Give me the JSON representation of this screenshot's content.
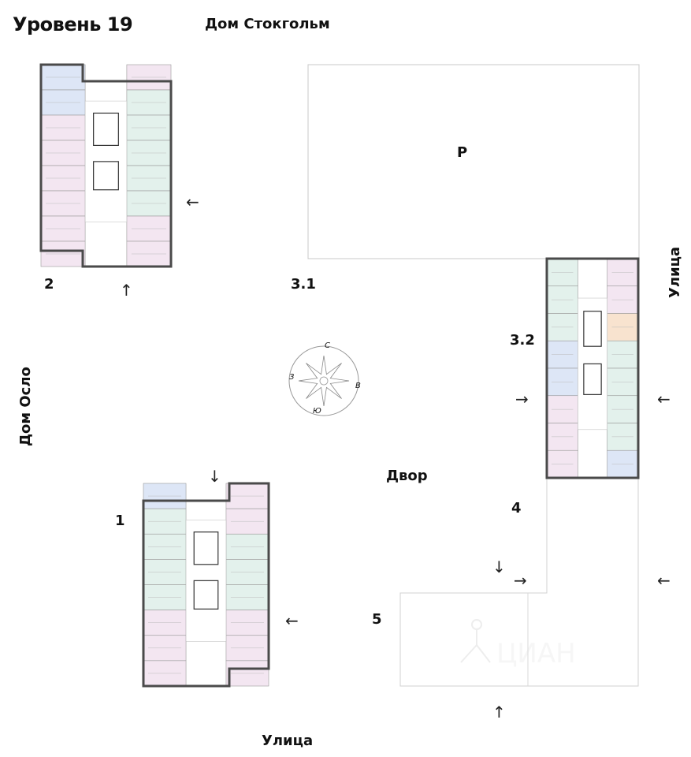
{
  "title": "Уровень 19",
  "labels": {
    "stockholm": "Дом Стокгольм",
    "oslo": "Дом Осло",
    "street_right": "Улица",
    "street_bottom": "Улица",
    "yard": "Двор",
    "parking": "P"
  },
  "sections": {
    "s1": "1",
    "s2": "2",
    "s31": "3.1",
    "s32": "3.2",
    "s4": "4",
    "s5": "5"
  },
  "compass": {
    "n": "С",
    "s": "Ю",
    "w": "З",
    "e": "В"
  },
  "arrows": {
    "left": "←",
    "right": "→",
    "up": "↑",
    "down": "↓"
  },
  "watermark": "ЦИАН",
  "colors": {
    "wall": "#4a4a4a",
    "pink": "#f3e6f1",
    "green": "#e3f1ec",
    "blue": "#dde6f6",
    "orange": "#f8e3cf",
    "outline": "#cfcfcf"
  }
}
